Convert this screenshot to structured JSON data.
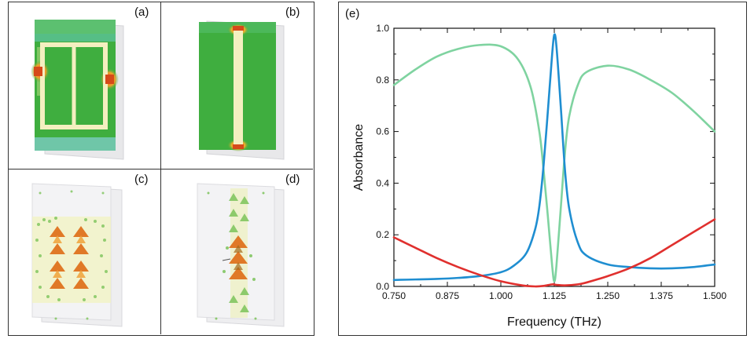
{
  "panels": [
    {
      "label": "(a)"
    },
    {
      "label": "(b)"
    },
    {
      "label": "(c)"
    },
    {
      "label": "(d)"
    },
    {
      "label": "(e)"
    }
  ],
  "colors": {
    "green_curve": "#7fd3a0",
    "blue_curve": "#1f8ed1",
    "red_curve": "#e0302e",
    "metal_field": "#3fae3f",
    "resonator": "#f4efc0",
    "hotspot": "#e0501f"
  },
  "chart_data": {
    "type": "line",
    "xlabel": "Frequency (THz)",
    "ylabel": "Absorbance",
    "xlim": [
      0.75,
      1.5
    ],
    "ylim": [
      0.0,
      1.0
    ],
    "x_ticks": [
      "0.750",
      "0.875",
      "1.000",
      "1.125",
      "1.250",
      "1.375",
      "1.500"
    ],
    "y_ticks": [
      "0.0",
      "0.2",
      "0.4",
      "0.6",
      "0.8",
      "1.0"
    ],
    "grid": false,
    "legend": "none",
    "series": [
      {
        "color": "#7fd3a0",
        "x": [
          0.75,
          0.8,
          0.85,
          0.9,
          0.95,
          1.0,
          1.04,
          1.07,
          1.09,
          1.1,
          1.11,
          1.12,
          1.125,
          1.13,
          1.14,
          1.15,
          1.16,
          1.18,
          1.2,
          1.25,
          1.3,
          1.35,
          1.4,
          1.45,
          1.5
        ],
        "y": [
          0.78,
          0.84,
          0.89,
          0.92,
          0.935,
          0.93,
          0.88,
          0.77,
          0.6,
          0.45,
          0.27,
          0.08,
          0.02,
          0.08,
          0.3,
          0.52,
          0.66,
          0.78,
          0.83,
          0.855,
          0.84,
          0.8,
          0.75,
          0.68,
          0.6
        ]
      },
      {
        "color": "#1f8ed1",
        "x": [
          0.75,
          0.8,
          0.85,
          0.9,
          0.95,
          1.0,
          1.03,
          1.06,
          1.08,
          1.09,
          1.1,
          1.11,
          1.12,
          1.125,
          1.13,
          1.14,
          1.15,
          1.16,
          1.18,
          1.2,
          1.25,
          1.3,
          1.35,
          1.4,
          1.45,
          1.5
        ],
        "y": [
          0.025,
          0.027,
          0.029,
          0.033,
          0.04,
          0.055,
          0.08,
          0.13,
          0.22,
          0.31,
          0.47,
          0.68,
          0.9,
          0.975,
          0.93,
          0.7,
          0.45,
          0.3,
          0.17,
          0.12,
          0.085,
          0.075,
          0.07,
          0.07,
          0.075,
          0.085
        ]
      },
      {
        "color": "#e0302e",
        "x": [
          0.75,
          0.8,
          0.85,
          0.9,
          0.95,
          1.0,
          1.05,
          1.08,
          1.1,
          1.12,
          1.13,
          1.15,
          1.18,
          1.2,
          1.25,
          1.3,
          1.35,
          1.4,
          1.45,
          1.5
        ],
        "y": [
          0.19,
          0.15,
          0.11,
          0.075,
          0.045,
          0.02,
          0.004,
          0.0,
          0.002,
          0.008,
          0.006,
          0.004,
          0.008,
          0.015,
          0.04,
          0.07,
          0.11,
          0.16,
          0.21,
          0.26
        ]
      }
    ]
  }
}
